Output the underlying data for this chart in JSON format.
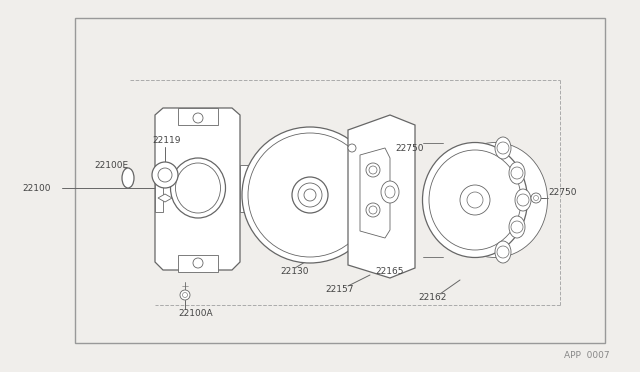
{
  "bg_color": "#f0eeeb",
  "border_color": "#999999",
  "line_color": "#666666",
  "text_color": "#444444",
  "title_code": "APP  0007",
  "figsize": [
    6.4,
    3.72
  ],
  "dpi": 100,
  "lw_main": 0.9,
  "lw_thin": 0.6,
  "fs_label": 6.5
}
